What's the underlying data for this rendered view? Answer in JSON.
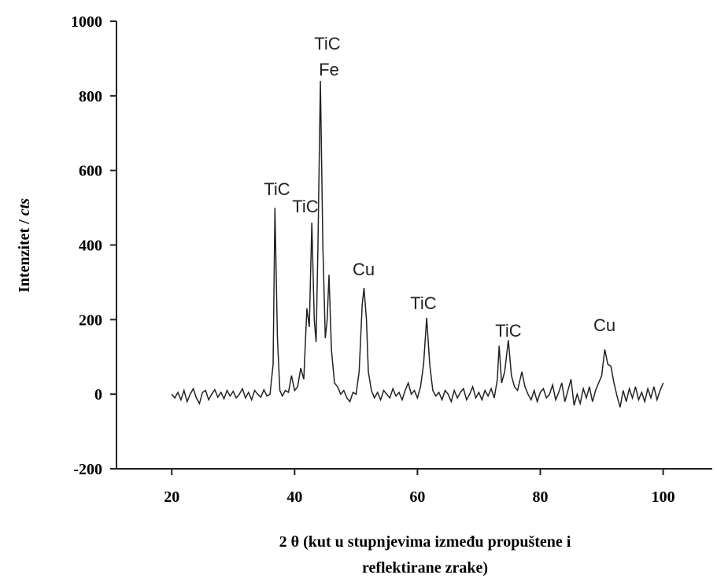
{
  "chart_data": {
    "type": "line",
    "ylabel": [
      "Intenzitet / ",
      "cts"
    ],
    "xlabel": [
      "2 θ (kut u stupnjevima između propuštene i",
      "reflektirane zrake)"
    ],
    "color": "#222222",
    "xlim": [
      11,
      108
    ],
    "xticks": [
      20,
      40,
      60,
      80,
      100
    ],
    "ylim": [
      -200,
      1000
    ],
    "yticks": [
      -200,
      0,
      200,
      400,
      600,
      800,
      1000
    ],
    "annotations": [
      "TiC",
      "TiC",
      "TiC",
      "Fe",
      "Cu",
      "TiC",
      "TiC",
      "Cu"
    ],
    "x": [
      20,
      20.5,
      21,
      21.5,
      22,
      22.5,
      23,
      23.5,
      24,
      24.5,
      25,
      25.5,
      26,
      26.5,
      27,
      27.5,
      28,
      28.5,
      29,
      29.5,
      30,
      30.5,
      31,
      31.5,
      32,
      32.5,
      33,
      33.5,
      34,
      34.5,
      35,
      35.5,
      36,
      36.5,
      36.8,
      37.2,
      37.6,
      38,
      38.5,
      39,
      39.5,
      40,
      40.5,
      41,
      41.5,
      42,
      42.4,
      42.8,
      43.2,
      43.5,
      43.8,
      44.2,
      44.6,
      45,
      45.3,
      45.6,
      46,
      46.5,
      47,
      47.5,
      48,
      48.5,
      49,
      49.5,
      50,
      50.5,
      51,
      51.3,
      51.7,
      52,
      52.5,
      53,
      53.5,
      54,
      54.5,
      55,
      55.5,
      56,
      56.5,
      57,
      57.5,
      58,
      58.5,
      59,
      59.5,
      60,
      60.5,
      61,
      61.5,
      62,
      62.5,
      63,
      63.5,
      64,
      64.5,
      65,
      65.5,
      66,
      66.5,
      67,
      67.5,
      68,
      68.5,
      69,
      69.5,
      70,
      70.5,
      71,
      71.5,
      72,
      72.5,
      73,
      73.3,
      73.7,
      74.2,
      74.8,
      75.3,
      75.8,
      76.3,
      77,
      77.5,
      78,
      78.5,
      79,
      79.5,
      80,
      80.5,
      81,
      81.5,
      82,
      82.5,
      83,
      83.5,
      84,
      84.5,
      85,
      85.5,
      86,
      86.5,
      87,
      87.5,
      88,
      88.5,
      89,
      89.5,
      90,
      90.5,
      91,
      91.5,
      92,
      92.5,
      93,
      93.5,
      94,
      94.5,
      95,
      95.5,
      96,
      96.5,
      97,
      97.5,
      98,
      98.5,
      99,
      99.5,
      100
    ],
    "values": [
      0,
      -10,
      5,
      -15,
      10,
      -20,
      0,
      15,
      -10,
      -25,
      5,
      10,
      -15,
      0,
      12,
      -8,
      5,
      -12,
      10,
      -5,
      8,
      -10,
      0,
      15,
      -10,
      5,
      -15,
      10,
      0,
      -8,
      12,
      -5,
      0,
      80,
      500,
      150,
      10,
      -5,
      10,
      5,
      50,
      10,
      20,
      70,
      40,
      230,
      180,
      460,
      200,
      140,
      400,
      840,
      400,
      150,
      200,
      320,
      120,
      30,
      20,
      0,
      10,
      -10,
      -20,
      5,
      0,
      60,
      240,
      285,
      200,
      60,
      10,
      -10,
      5,
      -15,
      10,
      0,
      -10,
      15,
      -5,
      5,
      -15,
      10,
      30,
      0,
      10,
      -10,
      20,
      80,
      205,
      80,
      10,
      -5,
      5,
      -15,
      10,
      0,
      -20,
      10,
      -10,
      5,
      15,
      -15,
      0,
      20,
      -10,
      5,
      -15,
      10,
      -5,
      15,
      -10,
      40,
      130,
      30,
      60,
      145,
      50,
      20,
      10,
      60,
      20,
      0,
      -15,
      10,
      -20,
      5,
      15,
      -10,
      0,
      25,
      -15,
      5,
      30,
      -20,
      10,
      40,
      -30,
      0,
      -25,
      15,
      -10,
      20,
      -20,
      10,
      30,
      50,
      120,
      80,
      75,
      30,
      -5,
      -35,
      10,
      -20,
      15,
      -10,
      20,
      -15,
      5,
      -20,
      15,
      -10,
      20,
      -15,
      10,
      30
    ]
  }
}
